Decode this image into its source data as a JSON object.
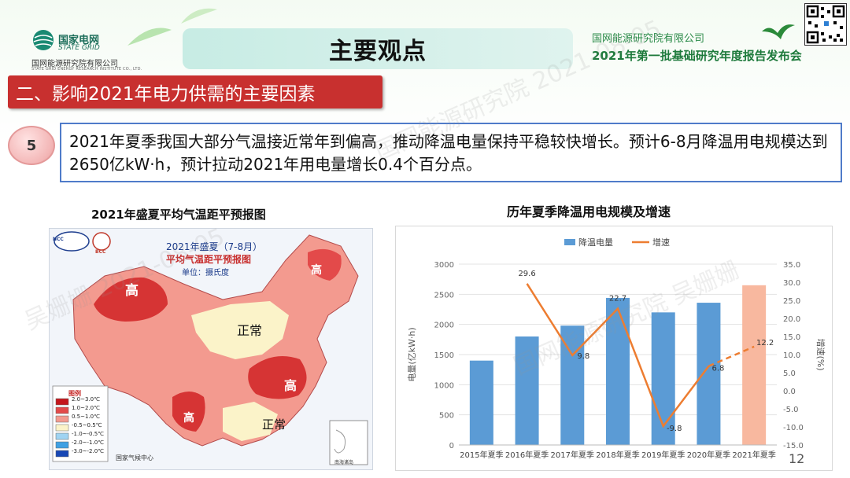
{
  "header": {
    "logo_cn": "国家电网",
    "logo_en": "STATE GRID",
    "logo_institute": "国网能源研究院有限公司",
    "logo_institute_en": "STATE GRID ENERGY RESEARCH INSTITUTE CO., LTD.",
    "title": "主要观点",
    "org": "国网能源研究院有限公司",
    "conference": "2021年第一批基础研究年度报告发布会"
  },
  "section_title": "二、影响2021年电力供需的主要因素",
  "point": {
    "number": "5",
    "text": "2021年夏季我国大部分气温接近常年到偏高，推动降温电量保持平稳较快增长。预计6-8月降温用电规模达到2650亿kW·h，预计拉动2021年用电量增长0.4个百分点。"
  },
  "map": {
    "caption": "2021年盛夏平均气温距平预报图",
    "inner_title1": "2021年盛夏（7-8月）",
    "inner_title2": "平均气温距平预报图",
    "inner_unit": "单位：摄氏度",
    "logo1": "NCC",
    "logo2": "BCC",
    "labels": [
      "高",
      "高",
      "正常",
      "高",
      "高",
      "正常"
    ],
    "legend_title": "图例",
    "legend": [
      {
        "label": "2.0~3.0℃",
        "color": "#c4161c"
      },
      {
        "label": "1.0~2.0℃",
        "color": "#e34a4a"
      },
      {
        "label": "0.5~1.0℃",
        "color": "#f39a8f"
      },
      {
        "label": "-0.5~0.5℃",
        "color": "#fbf3c9"
      },
      {
        "label": "-1.0~-0.5℃",
        "color": "#9fd3f2"
      },
      {
        "label": "-2.0~-1.0℃",
        "color": "#3fa0e3"
      },
      {
        "label": "-3.0~-2.0℃",
        "color": "#1747b5"
      }
    ],
    "source": "国家气候中心",
    "inset": "南海诸岛"
  },
  "chart_data": {
    "type": "bar",
    "title": "历年夏季降温用电规模及增速",
    "categories": [
      "2015年夏季",
      "2016年夏季",
      "2017年夏季",
      "2018年夏季",
      "2019年夏季",
      "2020年夏季",
      "2021年夏季"
    ],
    "series": [
      {
        "name": "降温电量",
        "type": "bar",
        "values": [
          1400,
          1800,
          1980,
          2440,
          2200,
          2360,
          2650
        ],
        "color": "#5b9bd5",
        "forecast_color": "#f8b89f"
      },
      {
        "name": "增速",
        "type": "line",
        "values": [
          null,
          29.6,
          9.8,
          22.7,
          -9.8,
          6.8,
          12.2
        ],
        "color": "#ed7d31"
      }
    ],
    "line_labels": [
      "29.6",
      "9.8",
      "22.7",
      "-9.8",
      "6.8",
      "12.2"
    ],
    "ylabel": "电量(亿kW·h)",
    "y2label": "增速(%)",
    "ylim": [
      0,
      3000
    ],
    "y2lim": [
      -15,
      35
    ],
    "yticks": [
      "0",
      "500",
      "1000",
      "1500",
      "2000",
      "2500",
      "3000"
    ],
    "y2ticks": [
      "-15.0",
      "-10.0",
      "-5.0",
      "0.0",
      "5.0",
      "10.0",
      "15.0",
      "20.0",
      "25.0",
      "30.0",
      "35.0"
    ],
    "legend": "top-center",
    "grid": true
  },
  "page_number": "12",
  "watermark": [
    "国网能源研究院 2021-08-05",
    "吴姗姗 2021-08-05",
    "国网能源研究院 吴姗姗"
  ]
}
